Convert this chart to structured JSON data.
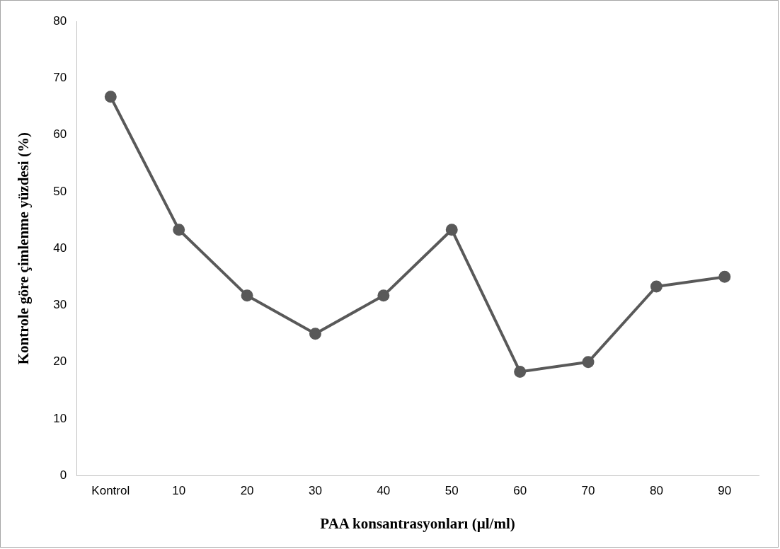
{
  "chart_data": {
    "type": "line",
    "xlabel": "PAA konsantrasyonları (µl/ml)",
    "ylabel": "Kontrole göre çimlenme yüzdesi (%)",
    "categories": [
      "Kontrol",
      "10",
      "20",
      "30",
      "40",
      "50",
      "60",
      "70",
      "80",
      "90"
    ],
    "series": [
      {
        "color": "#595959",
        "values": [
          66.7,
          43.3,
          31.7,
          25,
          31.7,
          43.3,
          18.3,
          20,
          33.3,
          35
        ]
      }
    ],
    "ylim": [
      0,
      80
    ],
    "yticks": [
      0,
      10,
      20,
      30,
      40,
      50,
      60,
      70,
      80
    ],
    "grid": false,
    "legend": false,
    "marker": "circle",
    "line_style": "solid"
  }
}
